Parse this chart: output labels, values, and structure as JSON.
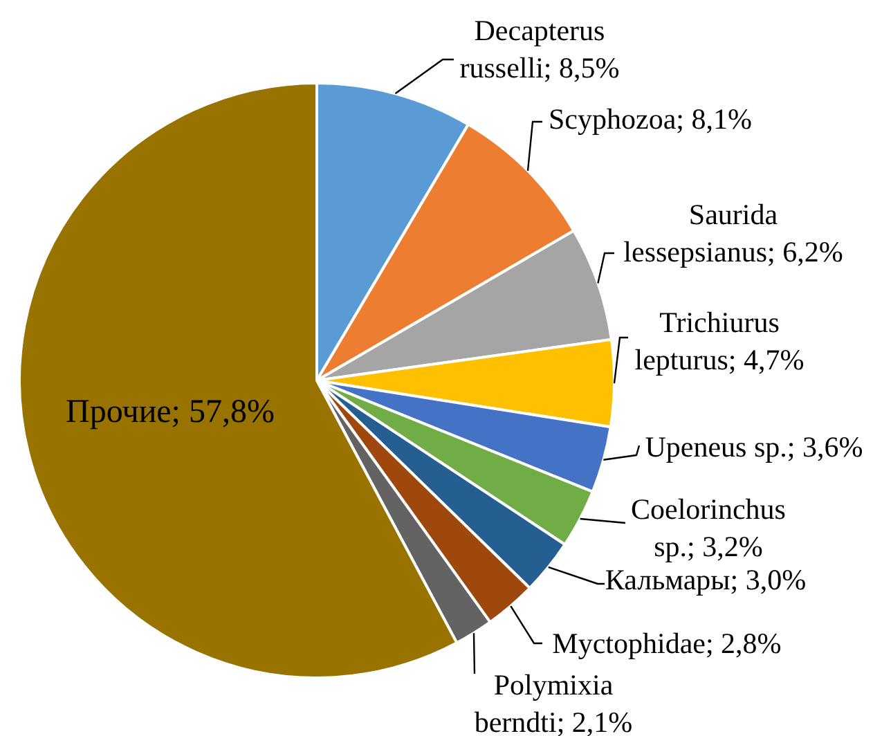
{
  "chart_data": {
    "type": "pie",
    "categories": [
      "Decapterus russelli",
      "Scyphozoa",
      "Saurida lessepsianus",
      "Trichiurus lepturus",
      "Upeneus sp.",
      "Coelorinchus sp.",
      "Кальмары",
      "Myctophidae",
      "Polymixia berndti",
      "Прочие"
    ],
    "values": [
      8.5,
      8.1,
      6.2,
      4.7,
      3.6,
      3.2,
      3.0,
      2.8,
      2.1,
      57.8
    ],
    "value_labels": [
      "8,5%",
      "8,1%",
      "6,2%",
      "4,7%",
      "3,6%",
      "3,2%",
      "3,0%",
      "2,8%",
      "2,1%",
      "57,8%"
    ],
    "colors": [
      "#5b9bd5",
      "#ed7d31",
      "#a5a5a5",
      "#ffc000",
      "#4472c4",
      "#70ad47",
      "#255e91",
      "#9e480e",
      "#636363",
      "#997300"
    ],
    "legend": false
  }
}
